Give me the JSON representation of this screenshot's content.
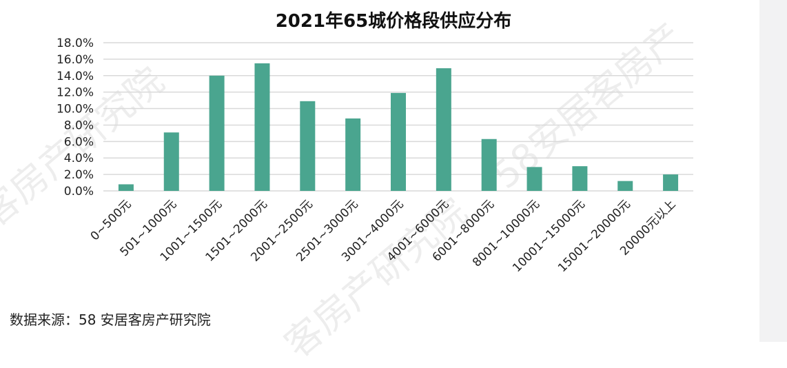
{
  "chart_data": {
    "type": "bar",
    "title": "2021年65城价格段供应分布",
    "categories": [
      "0~500元",
      "501~1000元",
      "1001~1500元",
      "1501~2000元",
      "2001~2500元",
      "2501~3000元",
      "3001~4000元",
      "4001~6000元",
      "6001~8000元",
      "8001~10000元",
      "10001~15000元",
      "15001~20000元",
      "20000元以上"
    ],
    "values": [
      0.8,
      7.1,
      14.0,
      15.5,
      10.9,
      8.8,
      11.9,
      14.9,
      6.3,
      2.9,
      3.0,
      1.2,
      2.0
    ],
    "y_ticks": [
      "0.0%",
      "2.0%",
      "4.0%",
      "6.0%",
      "8.0%",
      "10.0%",
      "12.0%",
      "14.0%",
      "16.0%",
      "18.0%"
    ],
    "ylim": [
      0,
      18
    ],
    "xlabel": "",
    "ylabel": "",
    "grid": true,
    "bar_color": "#4aa58f",
    "grid_color": "#d9d9d9"
  },
  "source_note": "数据来源：58 安居客房产研究院",
  "watermarks": [
    "客房产研究院",
    "58安居客房产",
    "客房产研究院"
  ]
}
